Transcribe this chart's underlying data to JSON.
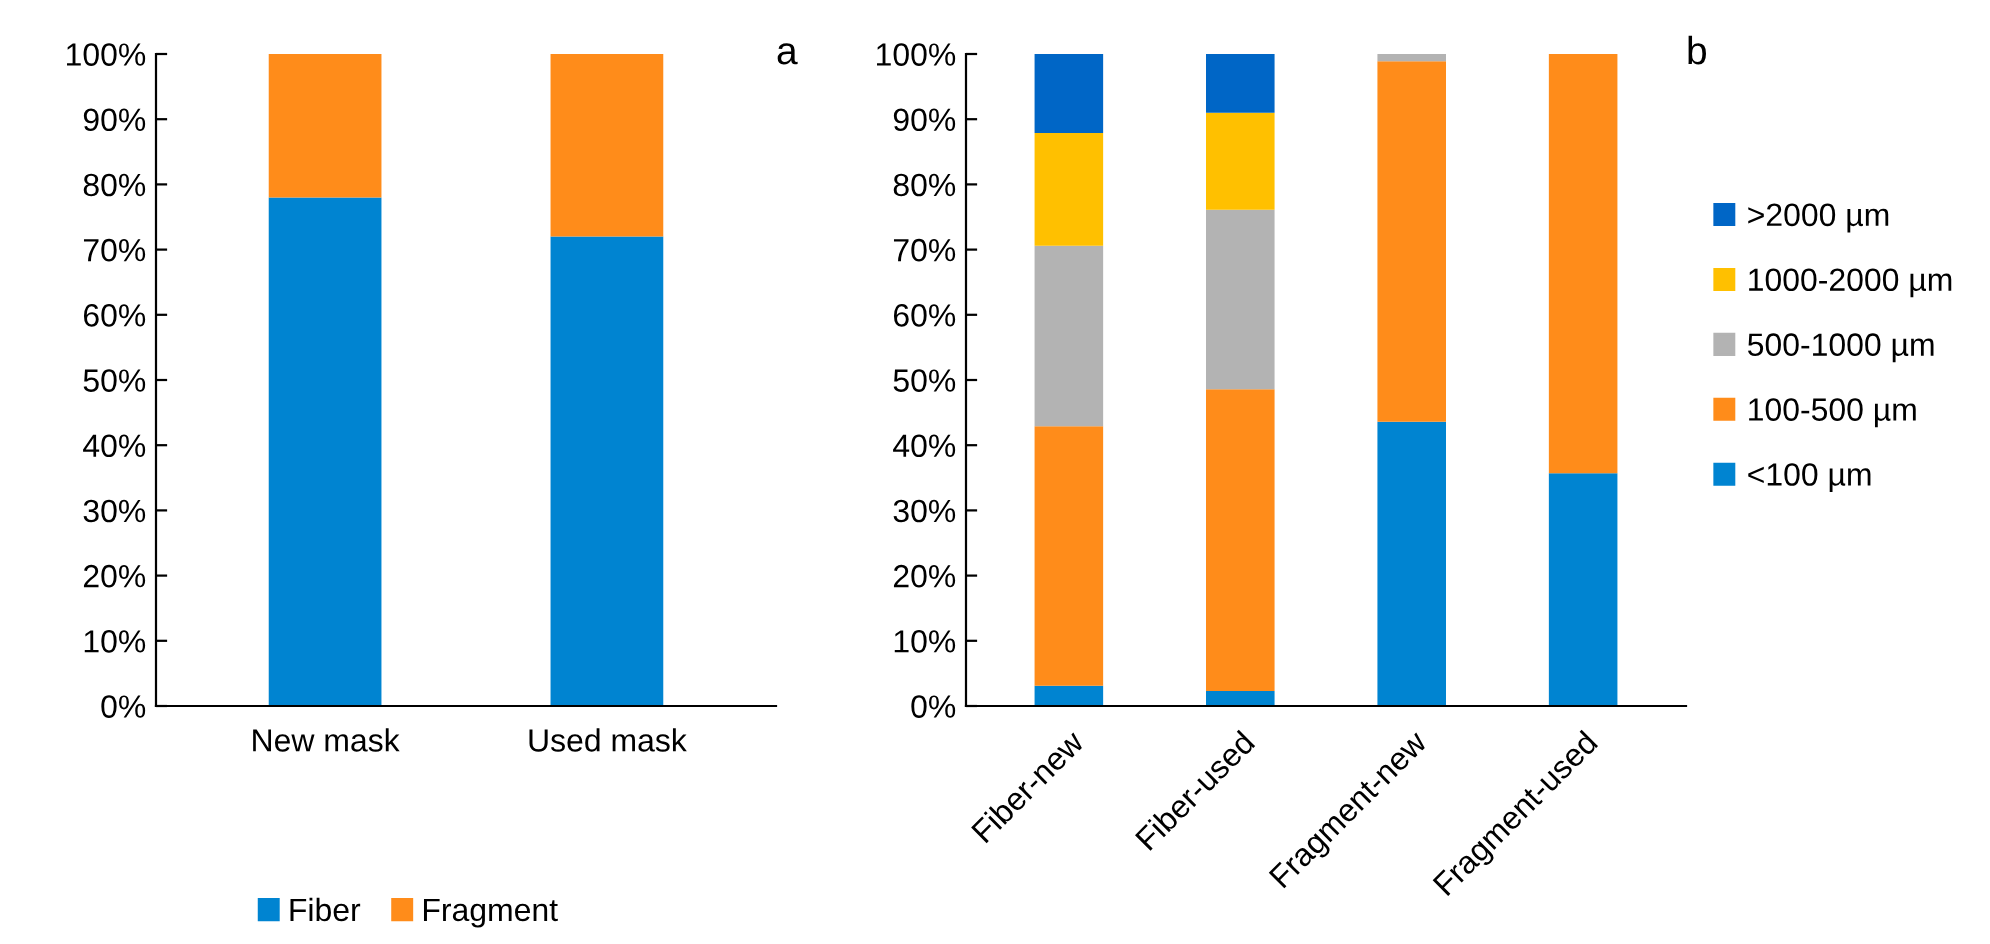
{
  "chart_data": [
    {
      "type": "bar",
      "stacked": true,
      "categories": [
        "New mask",
        "Used mask"
      ],
      "ylim": [
        0,
        100
      ],
      "yticks": [
        {
          "value": 0,
          "label": "0%"
        },
        {
          "value": 10,
          "label": "10%"
        },
        {
          "value": 20,
          "label": "20%"
        },
        {
          "value": 30,
          "label": "30%"
        },
        {
          "value": 40,
          "label": "40%"
        },
        {
          "value": 50,
          "label": "50%"
        },
        {
          "value": 60,
          "label": "60%"
        },
        {
          "value": 70,
          "label": "70%"
        },
        {
          "value": 80,
          "label": "80%"
        },
        {
          "value": 90,
          "label": "90%"
        },
        {
          "value": 100,
          "label": "100%"
        }
      ],
      "series": [
        {
          "name": "Fiber",
          "color": "#0084d1",
          "values": [
            78,
            72
          ]
        },
        {
          "name": "Fragment",
          "color": "#ff8c1a",
          "values": [
            22,
            28
          ]
        }
      ],
      "legend": "bottom",
      "grid": false,
      "annotations": [
        "a"
      ]
    },
    {
      "type": "bar",
      "stacked": true,
      "categories": [
        "Fiber-new",
        "Fiber-used",
        "Fragment-new",
        "Fragment-used"
      ],
      "ylim": [
        0,
        100
      ],
      "yticks": [
        {
          "value": 0,
          "label": "0%"
        },
        {
          "value": 10,
          "label": "10%"
        },
        {
          "value": 20,
          "label": "20%"
        },
        {
          "value": 30,
          "label": "30%"
        },
        {
          "value": 40,
          "label": "40%"
        },
        {
          "value": 50,
          "label": "50%"
        },
        {
          "value": 60,
          "label": "60%"
        },
        {
          "value": 70,
          "label": "70%"
        },
        {
          "value": 80,
          "label": "80%"
        },
        {
          "value": 90,
          "label": "90%"
        },
        {
          "value": 100,
          "label": "100%"
        }
      ],
      "series": [
        {
          "name": "<100 µm",
          "color": "#0084d1",
          "values": [
            3.1,
            2.3,
            43.6,
            35.7
          ]
        },
        {
          "name": "100-500 µm",
          "color": "#ff8c1a",
          "values": [
            39.8,
            46.3,
            55.3,
            64.3
          ]
        },
        {
          "name": "500-1000 µm",
          "color": "#b3b3b3",
          "values": [
            27.7,
            27.5,
            1.1,
            0
          ]
        },
        {
          "name": "1000-2000 µm",
          "color": "#ffc000",
          "values": [
            17.3,
            14.9,
            0,
            0
          ]
        },
        {
          "name": ">2000 µm",
          "color": "#0066c6",
          "values": [
            12.1,
            9,
            0,
            0
          ]
        }
      ],
      "legend": "right",
      "grid": false,
      "annotations": [
        "b"
      ]
    }
  ]
}
